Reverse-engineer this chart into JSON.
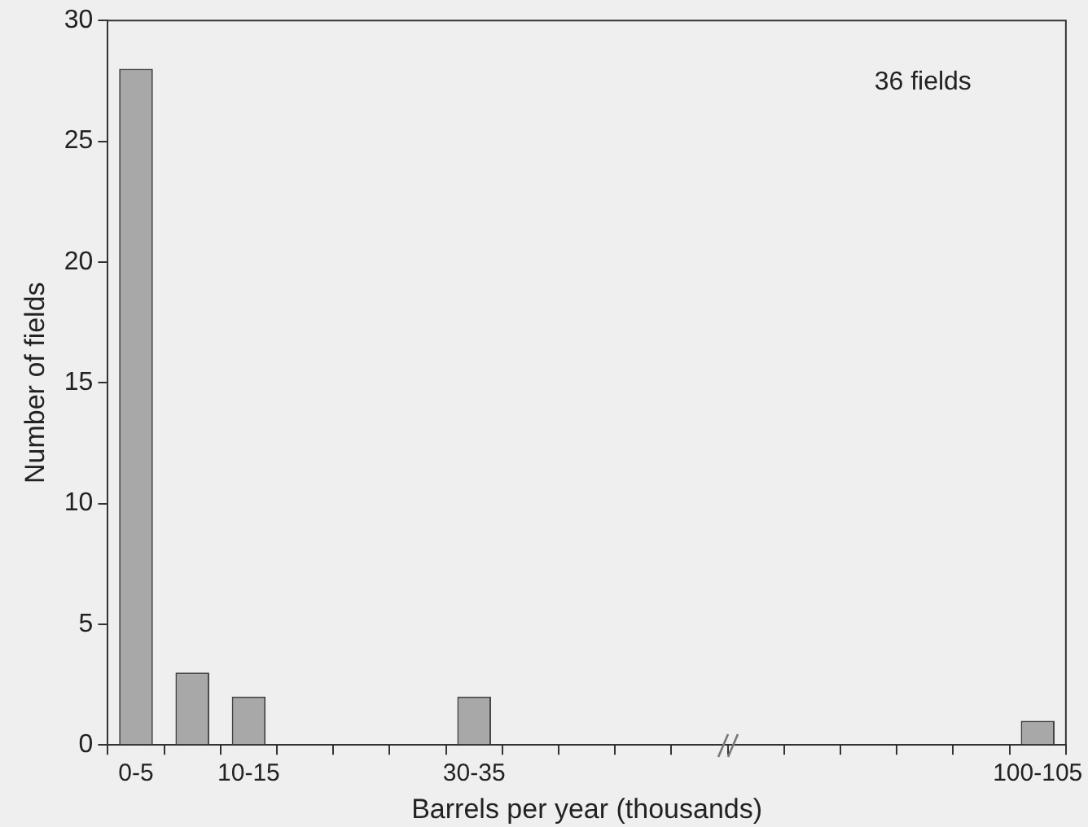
{
  "chart_data": {
    "type": "bar",
    "xlabel": "Barrels per year (thousands)",
    "ylabel": "Number of fields",
    "categories": [
      "0-5",
      null,
      "10-15",
      null,
      null,
      null,
      "30-35",
      null,
      null,
      null,
      null,
      null,
      null,
      null,
      null,
      null,
      "100-105"
    ],
    "values": [
      28,
      3,
      2,
      0,
      0,
      0,
      2,
      0,
      0,
      0,
      0,
      0,
      0,
      0,
      0,
      0,
      1
    ],
    "color": "#a8a8a8",
    "ylim": [
      0,
      30
    ],
    "yticks": [
      0,
      5,
      10,
      15,
      20,
      25,
      30
    ],
    "annotations": [
      "36 fields"
    ],
    "grid": false,
    "legend": false
  }
}
